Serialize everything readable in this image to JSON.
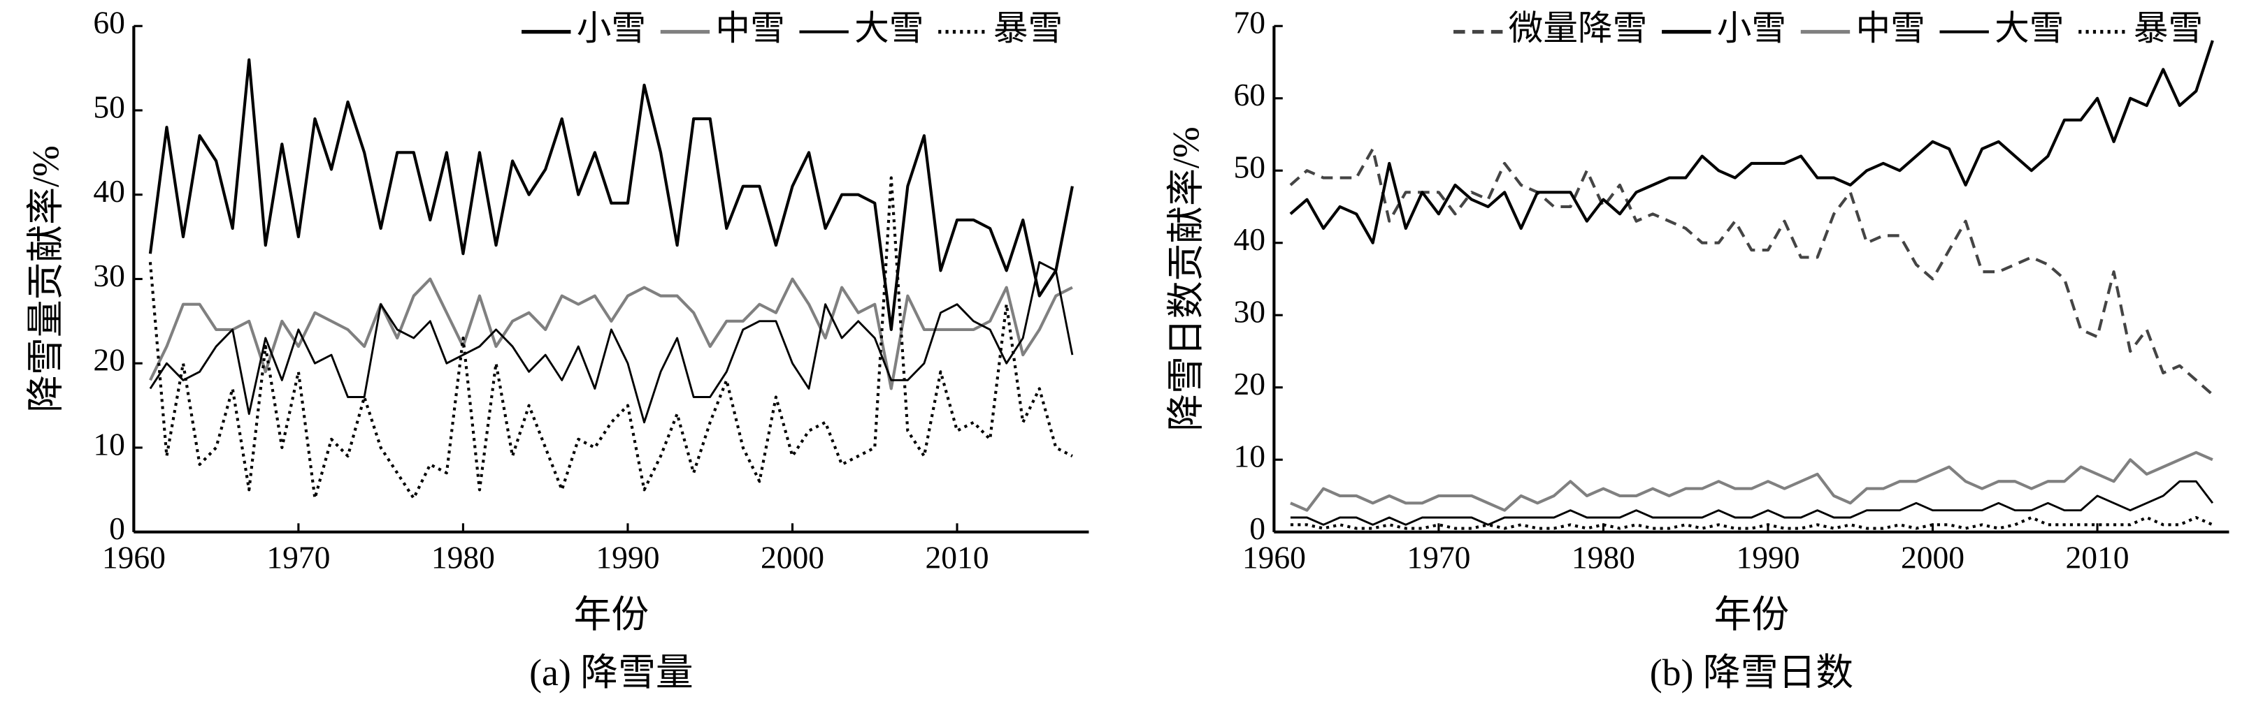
{
  "chart_data": [
    {
      "type": "line",
      "ylabel": "降雪量贡献率/%",
      "xlabel": "年份",
      "caption": "(a) 降雪量",
      "x": [
        1961,
        1962,
        1963,
        1964,
        1965,
        1966,
        1967,
        1968,
        1969,
        1970,
        1971,
        1972,
        1973,
        1974,
        1975,
        1976,
        1977,
        1978,
        1979,
        1980,
        1981,
        1982,
        1983,
        1984,
        1985,
        1986,
        1987,
        1988,
        1989,
        1990,
        1991,
        1992,
        1993,
        1994,
        1995,
        1996,
        1997,
        1998,
        1999,
        2000,
        2001,
        2002,
        2003,
        2004,
        2005,
        2006,
        2007,
        2008,
        2009,
        2010,
        2011,
        2012,
        2013,
        2014,
        2015,
        2016,
        2017
      ],
      "xlim": [
        1960,
        2018
      ],
      "xticks": [
        1960,
        1970,
        1980,
        1990,
        2000,
        2010
      ],
      "ylim": [
        0,
        60
      ],
      "yticks": [
        0,
        10,
        20,
        30,
        40,
        50,
        60
      ],
      "legend": "upper right",
      "series": [
        {
          "name": "小雪",
          "color": "#000000",
          "style": "solid",
          "width": 2,
          "values": [
            33,
            48,
            35,
            47,
            44,
            36,
            56,
            34,
            46,
            35,
            49,
            43,
            51,
            45,
            36,
            45,
            45,
            37,
            45,
            33,
            45,
            34,
            44,
            40,
            43,
            49,
            40,
            45,
            39,
            39,
            53,
            45,
            34,
            49,
            49,
            36,
            41,
            41,
            34,
            41,
            45,
            36,
            40,
            40,
            39,
            24,
            41,
            47,
            31,
            37,
            37,
            36,
            31,
            37,
            28,
            31,
            41
          ]
        },
        {
          "name": "中雪",
          "color": "#808080",
          "style": "solid",
          "width": 2,
          "values": [
            18,
            22,
            27,
            27,
            24,
            24,
            25,
            19,
            25,
            22,
            26,
            25,
            24,
            22,
            27,
            23,
            28,
            30,
            26,
            22,
            28,
            22,
            25,
            26,
            24,
            28,
            27,
            28,
            25,
            28,
            29,
            28,
            28,
            26,
            22,
            25,
            25,
            27,
            26,
            30,
            27,
            23,
            29,
            26,
            27,
            17,
            28,
            24,
            24,
            24,
            24,
            25,
            29,
            21,
            24,
            28,
            29
          ]
        },
        {
          "name": "大雪",
          "color": "#000000",
          "style": "solid",
          "width": 1.4,
          "values": [
            17,
            20,
            18,
            19,
            22,
            24,
            14,
            23,
            18,
            24,
            20,
            21,
            16,
            16,
            27,
            24,
            23,
            25,
            20,
            21,
            22,
            24,
            22,
            19,
            21,
            18,
            22,
            17,
            24,
            20,
            13,
            19,
            23,
            16,
            16,
            19,
            24,
            25,
            25,
            20,
            17,
            27,
            23,
            25,
            23,
            18,
            18,
            20,
            26,
            27,
            25,
            24,
            20,
            23,
            32,
            31,
            21
          ]
        },
        {
          "name": "暴雪",
          "color": "#000000",
          "style": "dotted",
          "width": 2,
          "values": [
            32,
            9,
            20,
            8,
            10,
            17,
            5,
            22,
            10,
            19,
            4,
            11,
            9,
            16,
            10,
            7,
            4,
            8,
            7,
            23,
            5,
            20,
            9,
            15,
            10,
            5,
            11,
            10,
            13,
            15,
            5,
            9,
            14,
            7,
            13,
            18,
            10,
            6,
            16,
            9,
            12,
            13,
            8,
            9,
            10,
            42,
            12,
            9,
            19,
            12,
            13,
            11,
            27,
            13,
            17,
            10,
            9
          ]
        }
      ]
    },
    {
      "type": "line",
      "ylabel": "降雪日数贡献率/%",
      "xlabel": "年份",
      "caption": "(b) 降雪日数",
      "x": [
        1961,
        1962,
        1963,
        1964,
        1965,
        1966,
        1967,
        1968,
        1969,
        1970,
        1971,
        1972,
        1973,
        1974,
        1975,
        1976,
        1977,
        1978,
        1979,
        1980,
        1981,
        1982,
        1983,
        1984,
        1985,
        1986,
        1987,
        1988,
        1989,
        1990,
        1991,
        1992,
        1993,
        1994,
        1995,
        1996,
        1997,
        1998,
        1999,
        2000,
        2001,
        2002,
        2003,
        2004,
        2005,
        2006,
        2007,
        2008,
        2009,
        2010,
        2011,
        2012,
        2013,
        2014,
        2015,
        2016,
        2017
      ],
      "xlim": [
        1960,
        2018
      ],
      "xticks": [
        1960,
        1970,
        1980,
        1990,
        2000,
        2010
      ],
      "ylim": [
        0,
        70
      ],
      "yticks": [
        0,
        10,
        20,
        30,
        40,
        50,
        60,
        70
      ],
      "legend": "upper right",
      "series": [
        {
          "name": "微量降雪",
          "color": "#444444",
          "style": "dashed",
          "width": 2,
          "values": [
            48,
            50,
            49,
            49,
            49,
            53,
            43,
            47,
            47,
            47,
            44,
            47,
            46,
            51,
            48,
            47,
            45,
            45,
            50,
            45,
            48,
            43,
            44,
            43,
            42,
            40,
            40,
            43,
            39,
            39,
            43,
            38,
            38,
            44,
            47,
            40,
            41,
            41,
            37,
            35,
            39,
            43,
            36,
            36,
            37,
            38,
            37,
            35,
            28,
            27,
            36,
            25,
            28,
            22,
            23,
            21,
            19
          ]
        },
        {
          "name": "小雪",
          "color": "#000000",
          "style": "solid",
          "width": 2,
          "values": [
            44,
            46,
            42,
            45,
            44,
            40,
            51,
            42,
            47,
            44,
            48,
            46,
            45,
            47,
            42,
            47,
            47,
            47,
            43,
            46,
            44,
            47,
            48,
            49,
            49,
            52,
            50,
            49,
            51,
            51,
            51,
            52,
            49,
            49,
            48,
            50,
            51,
            50,
            52,
            54,
            53,
            48,
            53,
            54,
            52,
            50,
            52,
            57,
            57,
            60,
            54,
            60,
            59,
            64,
            59,
            61,
            68
          ]
        },
        {
          "name": "中雪",
          "color": "#808080",
          "style": "solid",
          "width": 2,
          "values": [
            4,
            3,
            6,
            5,
            5,
            4,
            5,
            4,
            4,
            5,
            5,
            5,
            4,
            3,
            5,
            4,
            5,
            7,
            5,
            6,
            5,
            5,
            6,
            5,
            6,
            6,
            7,
            6,
            6,
            7,
            6,
            7,
            8,
            5,
            4,
            6,
            6,
            7,
            7,
            8,
            9,
            7,
            6,
            7,
            7,
            6,
            7,
            7,
            9,
            8,
            7,
            10,
            8,
            9,
            10,
            11,
            10
          ]
        },
        {
          "name": "大雪",
          "color": "#000000",
          "style": "solid",
          "width": 1.4,
          "values": [
            2,
            2,
            1,
            2,
            2,
            1,
            2,
            1,
            2,
            2,
            2,
            2,
            1,
            2,
            2,
            2,
            2,
            3,
            2,
            2,
            2,
            3,
            2,
            2,
            2,
            2,
            3,
            2,
            2,
            3,
            2,
            2,
            3,
            2,
            2,
            3,
            3,
            3,
            4,
            3,
            3,
            3,
            3,
            4,
            3,
            3,
            4,
            3,
            3,
            5,
            4,
            3,
            4,
            5,
            7,
            7,
            4
          ]
        },
        {
          "name": "暴雪",
          "color": "#000000",
          "style": "dotted",
          "width": 2,
          "values": [
            1,
            1,
            0.5,
            1,
            0.5,
            0.5,
            1,
            0.5,
            0.5,
            1,
            0.5,
            0.5,
            1,
            0.5,
            1,
            0.5,
            0.5,
            1,
            0.5,
            1,
            0.5,
            1,
            0.5,
            0.5,
            1,
            0.5,
            1,
            0.5,
            0.5,
            1,
            0.5,
            0.5,
            1,
            0.5,
            1,
            0.5,
            0.5,
            1,
            0.5,
            1,
            1,
            0.5,
            1,
            0.5,
            1,
            2,
            1,
            1,
            1,
            1,
            1,
            1,
            2,
            1,
            1,
            2,
            1
          ]
        }
      ]
    }
  ]
}
